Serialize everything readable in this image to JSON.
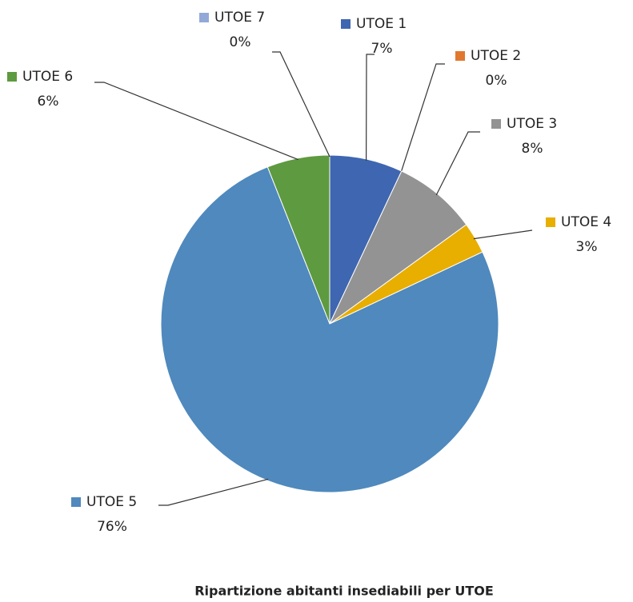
{
  "chart_data": {
    "type": "pie",
    "title": "Ripartizione abitanti insediabili per UTOE",
    "categories": [
      "UTOE 1",
      "UTOE 2",
      "UTOE 3",
      "UTOE 4",
      "UTOE 5",
      "UTOE 6",
      "UTOE 7"
    ],
    "values": [
      7,
      0,
      8,
      3,
      76,
      6,
      0
    ],
    "value_labels": [
      "7%",
      "0%",
      "8%",
      "3%",
      "76%",
      "6%",
      "0%"
    ],
    "colors": [
      "#3f66b0",
      "#e07830",
      "#939393",
      "#e8ae00",
      "#4f89bd",
      "#5e9a40",
      "#92a9d8"
    ]
  }
}
